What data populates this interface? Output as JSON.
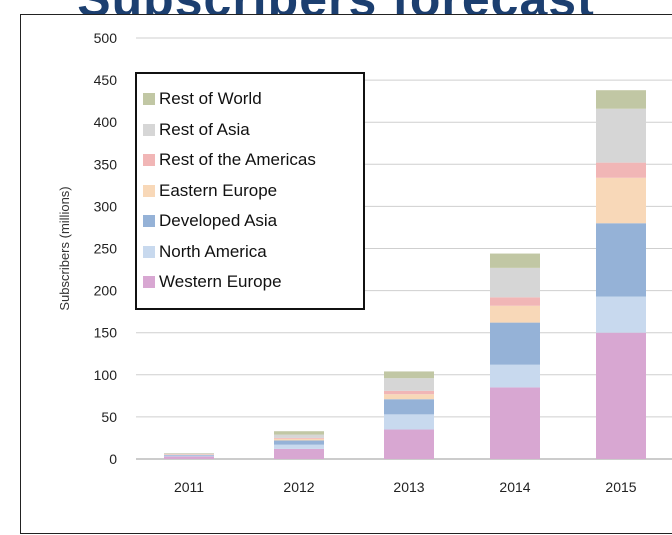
{
  "title": "Subscribers forecast",
  "chart_data": {
    "type": "bar",
    "stacked": true,
    "title": "Subscribers forecast",
    "xlabel": "",
    "ylabel": "Subscribers (millions)",
    "ylim": [
      0,
      500
    ],
    "yticks": [
      0,
      50,
      100,
      150,
      200,
      250,
      300,
      350,
      400,
      450,
      500
    ],
    "grid": true,
    "legend_position": "top-left",
    "categories": [
      "2011",
      "2012",
      "2013",
      "2014",
      "2015"
    ],
    "series": [
      {
        "name": "Western Europe",
        "color": "#d8a7d2",
        "values": [
          3,
          12,
          35,
          85,
          150
        ]
      },
      {
        "name": "North America",
        "color": "#c8d9ee",
        "values": [
          1,
          5,
          18,
          27,
          43
        ]
      },
      {
        "name": "Developed Asia",
        "color": "#95b2d7",
        "values": [
          1,
          5,
          18,
          50,
          87
        ]
      },
      {
        "name": "Eastern Europe",
        "color": "#f8d8b8",
        "values": [
          0.5,
          2,
          6,
          20,
          54
        ]
      },
      {
        "name": "Rest of the Americas",
        "color": "#f1b6b6",
        "values": [
          0.5,
          1,
          4,
          10,
          18
        ]
      },
      {
        "name": "Rest of Asia",
        "color": "#d6d6d6",
        "values": [
          0.5,
          4,
          15,
          35,
          64
        ]
      },
      {
        "name": "Rest of World",
        "color": "#c1c7a4",
        "values": [
          0.5,
          4,
          8,
          17,
          22
        ]
      }
    ]
  },
  "legend_order": [
    6,
    5,
    4,
    3,
    2,
    1,
    0
  ]
}
